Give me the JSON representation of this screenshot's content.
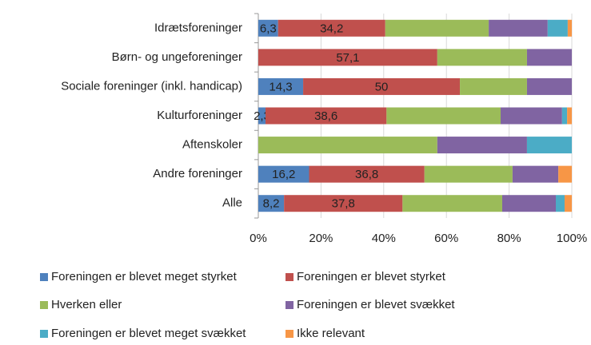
{
  "chart_data": {
    "type": "stacked_barh",
    "categories": [
      "Idrætsforeninger",
      "Børn- og ungeforeninger",
      "Sociale foreninger (inkl. handicap)",
      "Kulturforeninger",
      "Aftenskoler",
      "Andre foreninger",
      "Alle"
    ],
    "series": [
      {
        "name": "Foreningen er blevet meget styrket",
        "color": "#4f81bd",
        "values": [
          6.3,
          0,
          14.3,
          2.3,
          0,
          16.2,
          8.2
        ],
        "value_labels": [
          "6,3",
          "0",
          "14,3",
          "2,3",
          "0",
          "16,2",
          "8,2"
        ]
      },
      {
        "name": "Foreningen er blevet styrket",
        "color": "#c0504d",
        "values": [
          34.2,
          57.1,
          50,
          38.6,
          0,
          36.8,
          37.8
        ],
        "value_labels": [
          "34,2",
          "57,1",
          "50",
          "38,6",
          null,
          "36,8",
          "37,8"
        ]
      },
      {
        "name": "Hverken eller",
        "color": "#9bbb59",
        "values": [
          33.0,
          28.6,
          21.4,
          36.4,
          57.1,
          28.1,
          31.8
        ]
      },
      {
        "name": "Foreningen er blevet svækket",
        "color": "#8064a2",
        "values": [
          18.8,
          14.3,
          14.3,
          19.6,
          28.6,
          14.6,
          17.1
        ]
      },
      {
        "name": "Foreningen er blevet meget svækket",
        "color": "#4bacc6",
        "values": [
          6.4,
          0,
          0,
          1.6,
          14.3,
          0,
          2.8
        ]
      },
      {
        "name": "Ikke relevant",
        "color": "#f79646",
        "values": [
          1.3,
          0,
          0,
          1.5,
          0,
          4.3,
          2.3
        ]
      }
    ],
    "xlim": [
      0,
      100
    ],
    "xticks": [
      {
        "value": 0,
        "label": "0%"
      },
      {
        "value": 20,
        "label": "20%"
      },
      {
        "value": 40,
        "label": "40%"
      },
      {
        "value": 60,
        "label": "60%"
      },
      {
        "value": 80,
        "label": "80%"
      },
      {
        "value": 100,
        "label": "100%"
      }
    ],
    "grid": true
  }
}
